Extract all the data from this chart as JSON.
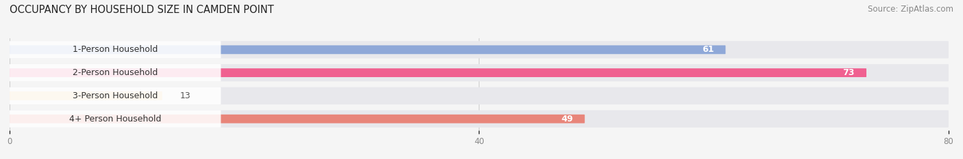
{
  "title": "OCCUPANCY BY HOUSEHOLD SIZE IN CAMDEN POINT",
  "source": "Source: ZipAtlas.com",
  "categories": [
    "1-Person Household",
    "2-Person Household",
    "3-Person Household",
    "4+ Person Household"
  ],
  "values": [
    61,
    73,
    13,
    49
  ],
  "bar_colors": [
    "#8fa8d8",
    "#f06090",
    "#f5c98a",
    "#e8857a"
  ],
  "bg_color": "#f0f0f0",
  "row_bg_color": "#e8e8ec",
  "xlim": [
    0,
    80
  ],
  "xticks": [
    0,
    40,
    80
  ],
  "title_fontsize": 10.5,
  "source_fontsize": 8.5,
  "bar_label_fontsize": 9,
  "value_label_fontsize": 9,
  "background_color": "#f5f5f5"
}
